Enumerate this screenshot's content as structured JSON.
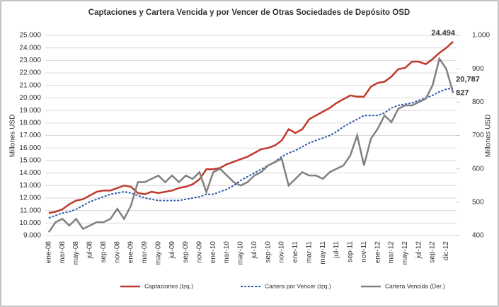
{
  "chart_data": {
    "type": "line",
    "title": "Captaciones y Cartera Vencida y por Vencer de Otras Sociedades de Depósito OSD",
    "y_label": "Millones USD",
    "y2_label": "Millones USD",
    "categories": [
      "ene-08",
      null,
      "mar-08",
      null,
      "may-08",
      null,
      "jul-08",
      null,
      "sep-08",
      null,
      "nov-08",
      null,
      "ene-09",
      null,
      "mar-09",
      null,
      "may-09",
      null,
      "jul-09",
      null,
      "sep-09",
      null,
      "nov-09",
      null,
      "ene-10",
      null,
      "mar-10",
      null,
      "may-10",
      null,
      "jul-10",
      null,
      "sep-10",
      null,
      "nov-10",
      null,
      "ene-11",
      null,
      "mar-11",
      null,
      "may-11",
      null,
      "jul-11",
      null,
      "sep-11",
      null,
      "nov-11",
      null,
      "ene-12",
      null,
      "mar-12",
      null,
      "may-12",
      null,
      "jul-12",
      null,
      "sep-12",
      null,
      "dic-12",
      null
    ],
    "ylim": [
      9000,
      25000
    ],
    "yticks": [
      {
        "value": 9000,
        "label": "9.000"
      },
      {
        "value": 10000,
        "label": "10.000"
      },
      {
        "value": 11000,
        "label": "11.000"
      },
      {
        "value": 12000,
        "label": "12.000"
      },
      {
        "value": 13000,
        "label": "13.000"
      },
      {
        "value": 14000,
        "label": "14.000"
      },
      {
        "value": 15000,
        "label": "15.000"
      },
      {
        "value": 16000,
        "label": "16.000"
      },
      {
        "value": 17000,
        "label": "17.000"
      },
      {
        "value": 18000,
        "label": "18.000"
      },
      {
        "value": 19000,
        "label": "19.000"
      },
      {
        "value": 20000,
        "label": "20.000"
      },
      {
        "value": 21000,
        "label": "21.000"
      },
      {
        "value": 22000,
        "label": "22.000"
      },
      {
        "value": 23000,
        "label": "23.000"
      },
      {
        "value": 24000,
        "label": "24.000"
      },
      {
        "value": 25000,
        "label": "25.000"
      }
    ],
    "y2lim": [
      400,
      1000
    ],
    "y2ticks": [
      400,
      500,
      600,
      700,
      800,
      900,
      {
        "value": 1000,
        "label": "1.000"
      }
    ],
    "grid": true,
    "series": [
      {
        "name": "Captaciones (Izq.)",
        "color": "#c0392b",
        "dash": false,
        "width": 2.5,
        "values": [
          10800,
          10900,
          11100,
          11500,
          11800,
          11900,
          12200,
          12500,
          12600,
          12600,
          12800,
          13000,
          12900,
          12400,
          12300,
          12500,
          12400,
          12500,
          12600,
          12800,
          12900,
          13100,
          13500,
          14300,
          14300,
          14400,
          14700,
          14900,
          15100,
          15300,
          15600,
          15900,
          16000,
          16200,
          16600,
          17500,
          17200,
          17500,
          18300,
          18600,
          18900,
          19200,
          19600,
          19900,
          20200,
          20100,
          20100,
          20900,
          21200,
          21300,
          21700,
          22300,
          22400,
          22900,
          22900,
          22700,
          23100,
          23600,
          24000,
          24494
        ],
        "value_labels": {
          "59": "24.494"
        }
      },
      {
        "name": "Cartera por Vencer (Izq.)",
        "color": "#2e5da8",
        "dash": true,
        "width": 2,
        "values": [
          10400,
          10600,
          10800,
          10900,
          11100,
          11400,
          11700,
          11900,
          12100,
          12300,
          12400,
          12500,
          12400,
          12200,
          12000,
          11900,
          11800,
          11800,
          11800,
          11800,
          11900,
          12000,
          12100,
          12300,
          12300,
          12500,
          12700,
          13000,
          13400,
          13700,
          14000,
          14300,
          14600,
          14900,
          15300,
          15600,
          15800,
          16100,
          16400,
          16600,
          16800,
          17000,
          17300,
          17700,
          18000,
          18300,
          18600,
          18600,
          18600,
          18800,
          19200,
          19400,
          19500,
          19600,
          19800,
          20000,
          20200,
          20500,
          20700,
          20787
        ],
        "value_labels": {
          "59": "20,787"
        }
      },
      {
        "name": "Cartera Vencida (Der.)",
        "color": "#808080",
        "dash": false,
        "width": 2.5,
        "axis": "y2",
        "values": [
          410,
          440,
          450,
          430,
          450,
          420,
          430,
          440,
          440,
          450,
          480,
          450,
          490,
          560,
          560,
          570,
          580,
          560,
          580,
          560,
          580,
          570,
          590,
          530,
          590,
          600,
          580,
          560,
          550,
          560,
          580,
          590,
          610,
          620,
          630,
          550,
          570,
          590,
          580,
          580,
          570,
          590,
          600,
          610,
          640,
          700,
          610,
          690,
          720,
          760,
          740,
          780,
          790,
          790,
          800,
          810,
          850,
          930,
          900,
          827
        ],
        "value_labels": {
          "59": "827"
        }
      }
    ]
  }
}
